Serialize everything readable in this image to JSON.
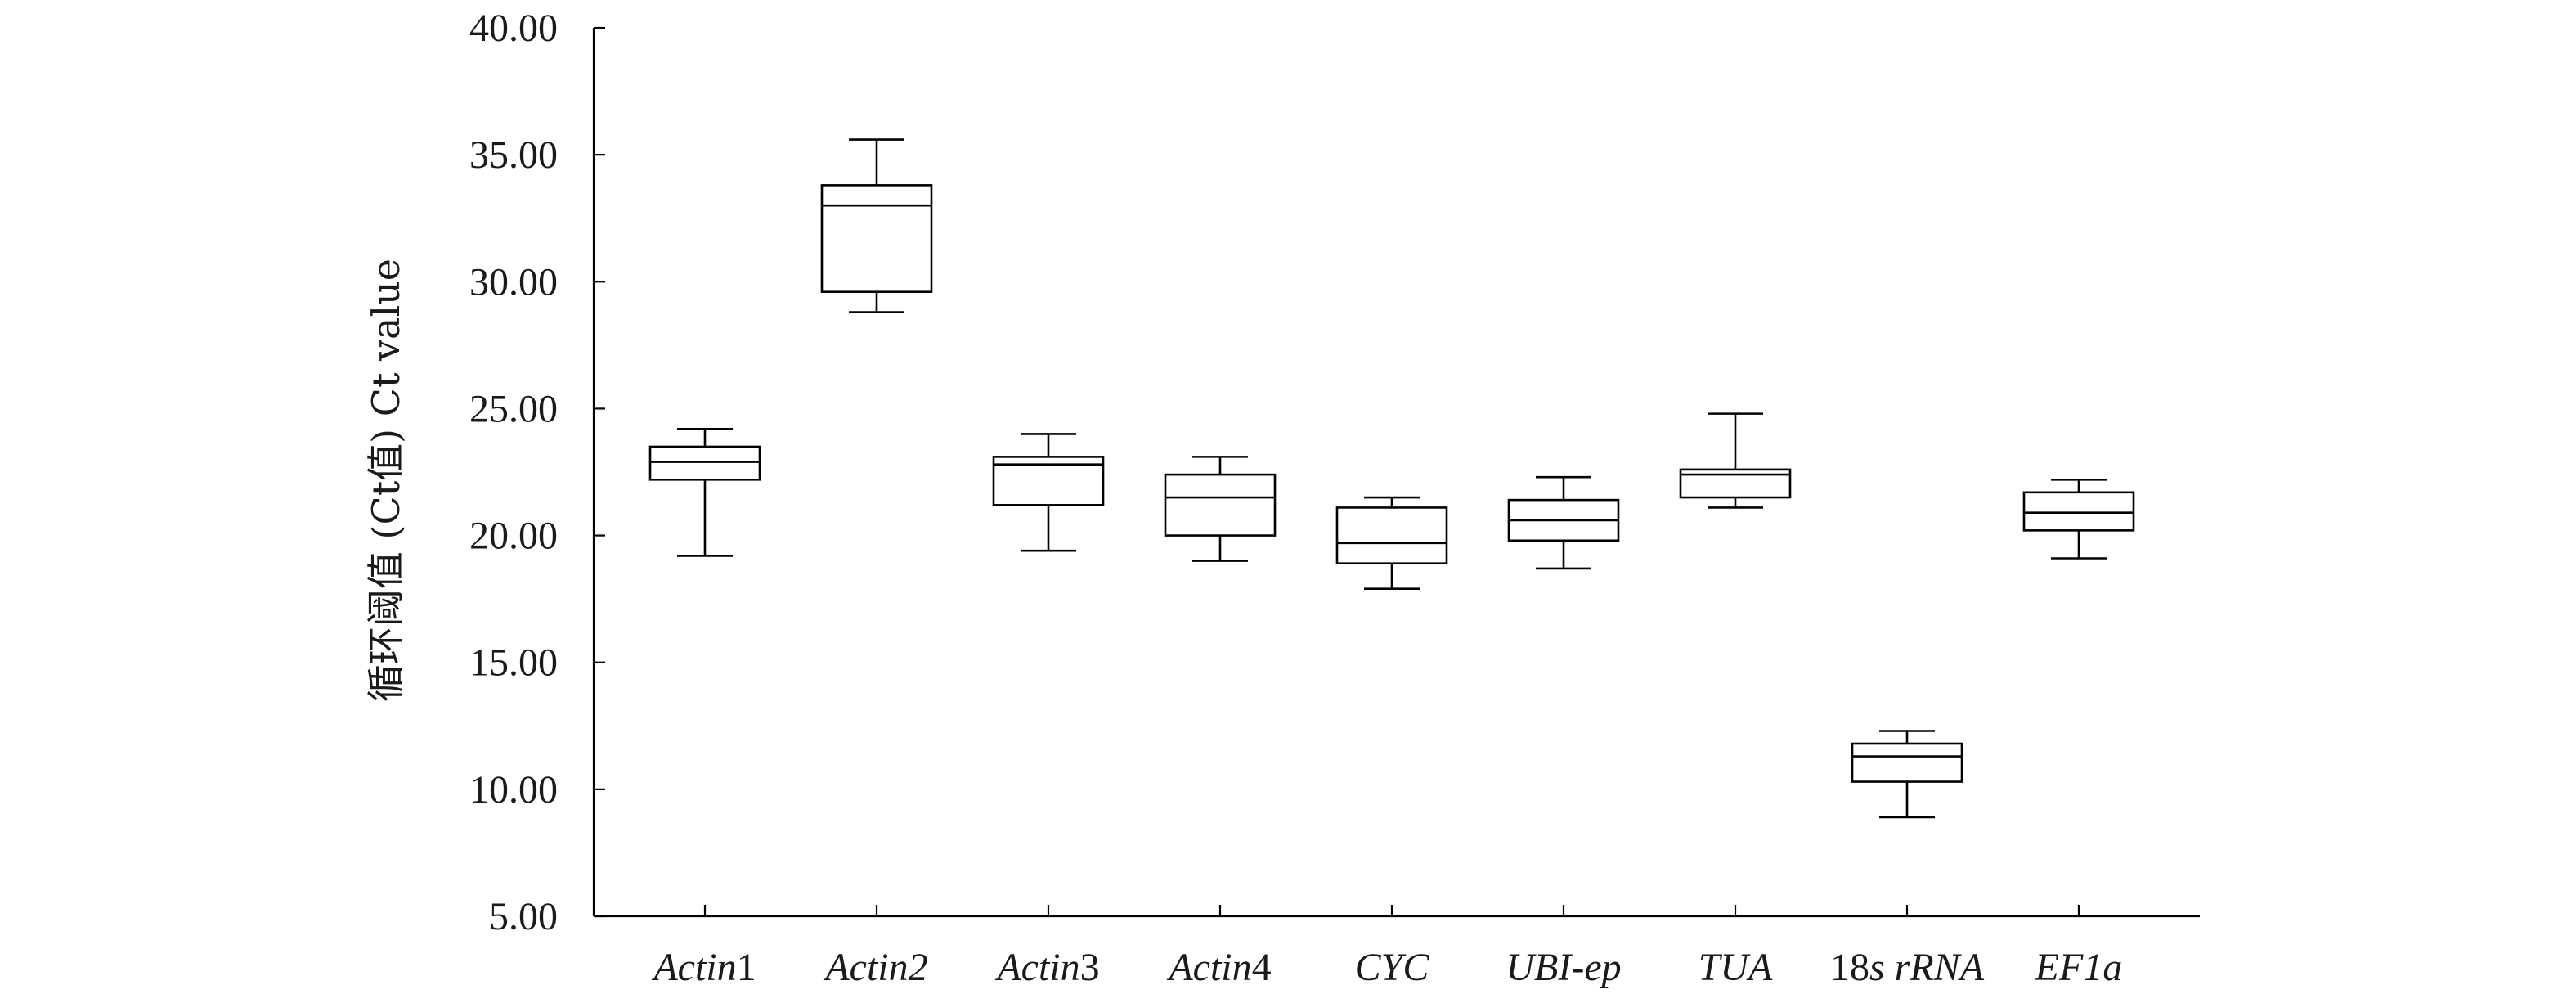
{
  "chart_data": {
    "type": "box",
    "title": "",
    "xlabel": "",
    "ylabel": "循环阈值 (Ct值) Ct value",
    "ylim": [
      5,
      40
    ],
    "y_tick_values": [
      5,
      10,
      15,
      20,
      25,
      30,
      35,
      40
    ],
    "y_tick_labels": [
      "5.00",
      "10.00",
      "15.00",
      "20.00",
      "25.00",
      "30.00",
      "35.00",
      "40.00"
    ],
    "grid": false,
    "legend": "none",
    "categories": [
      {
        "parts": [
          {
            "text": "Actin",
            "italic": true
          },
          {
            "text": "1",
            "italic": false
          }
        ]
      },
      {
        "parts": [
          {
            "text": "Actin",
            "italic": true
          },
          {
            "text": "2",
            "italic": true
          }
        ]
      },
      {
        "parts": [
          {
            "text": "Actin",
            "italic": true
          },
          {
            "text": "3",
            "italic": false
          }
        ]
      },
      {
        "parts": [
          {
            "text": "Actin",
            "italic": true
          },
          {
            "text": "4",
            "italic": false
          }
        ]
      },
      {
        "parts": [
          {
            "text": "CYC",
            "italic": true
          }
        ]
      },
      {
        "parts": [
          {
            "text": "UBI-ep",
            "italic": true
          }
        ]
      },
      {
        "parts": [
          {
            "text": "TUA",
            "italic": true
          }
        ]
      },
      {
        "parts": [
          {
            "text": "18",
            "italic": false
          },
          {
            "text": "s",
            "italic": true
          },
          {
            "text": " ",
            "italic": false
          },
          {
            "text": "rRNA",
            "italic": true
          }
        ]
      },
      {
        "parts": [
          {
            "text": "EF1a",
            "italic": true
          }
        ]
      }
    ],
    "boxes": [
      {
        "min": 19.2,
        "q1": 22.2,
        "median": 22.9,
        "q3": 23.5,
        "max": 24.2
      },
      {
        "min": 28.8,
        "q1": 29.6,
        "median": 33.0,
        "q3": 33.8,
        "max": 35.6
      },
      {
        "min": 19.4,
        "q1": 21.2,
        "median": 22.8,
        "q3": 23.1,
        "max": 24.0
      },
      {
        "min": 19.0,
        "q1": 20.0,
        "median": 21.5,
        "q3": 22.4,
        "max": 23.1
      },
      {
        "min": 17.9,
        "q1": 18.9,
        "median": 19.7,
        "q3": 21.1,
        "max": 21.5
      },
      {
        "min": 18.7,
        "q1": 19.8,
        "median": 20.6,
        "q3": 21.4,
        "max": 22.3
      },
      {
        "min": 21.1,
        "q1": 21.5,
        "median": 22.4,
        "q3": 22.6,
        "max": 24.8
      },
      {
        "min": 8.9,
        "q1": 10.3,
        "median": 11.3,
        "q3": 11.8,
        "max": 12.3
      },
      {
        "min": 19.1,
        "q1": 20.2,
        "median": 20.9,
        "q3": 21.7,
        "max": 22.2
      }
    ]
  }
}
